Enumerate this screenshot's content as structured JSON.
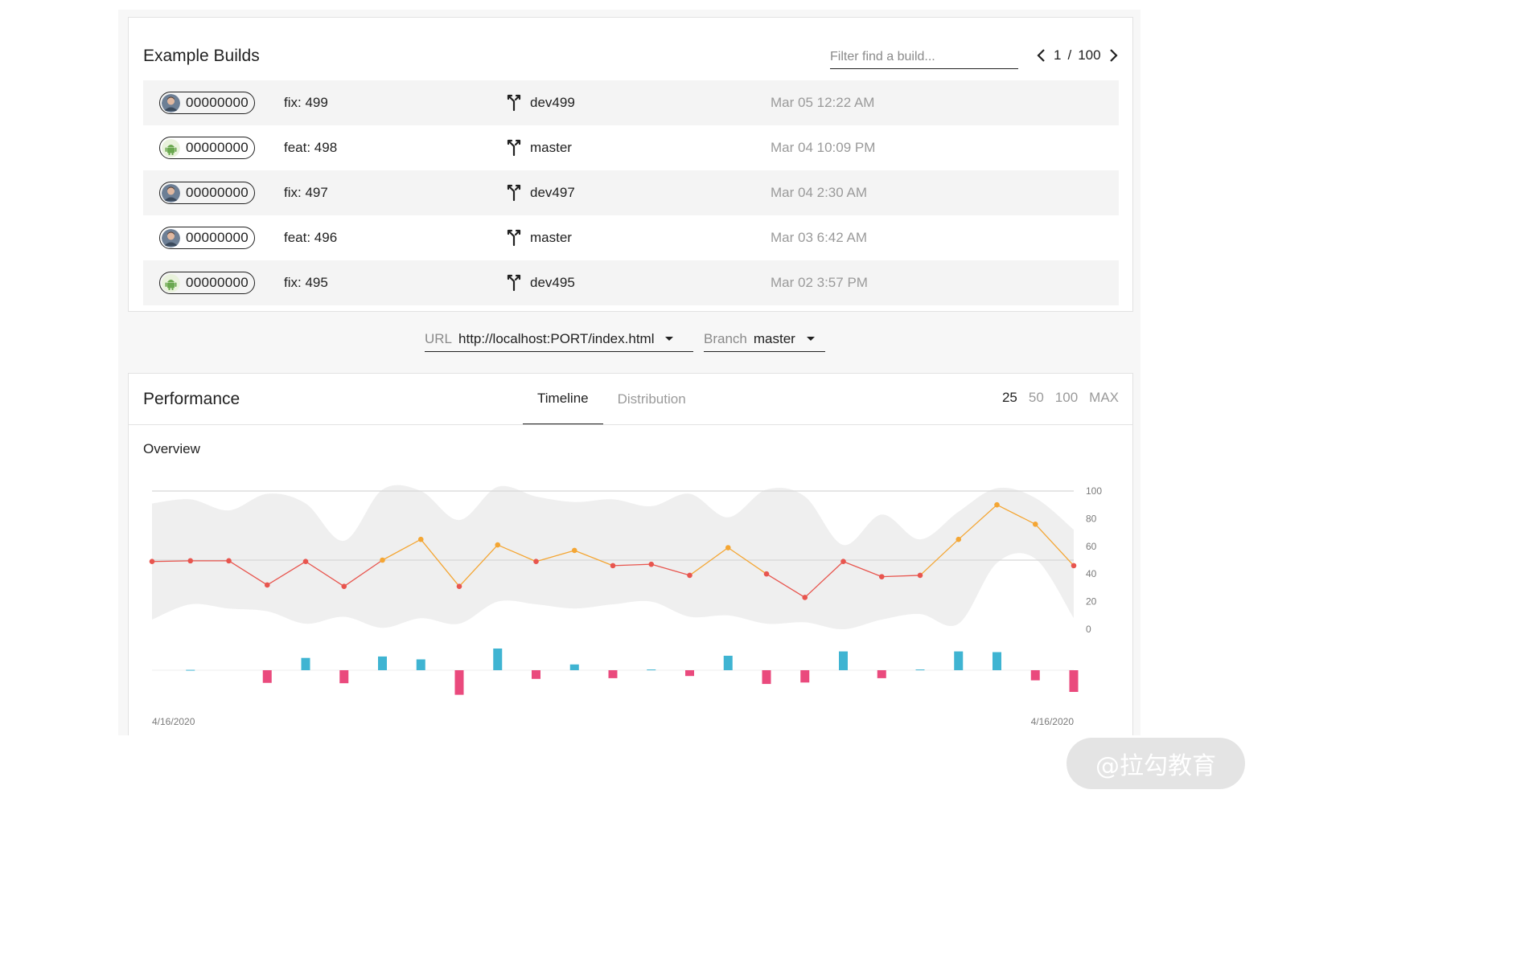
{
  "builds": {
    "title": "Example Builds",
    "filter_placeholder": "Filter find a build...",
    "pager": {
      "current": "1",
      "separator": "/",
      "total": "100"
    },
    "rows": [
      {
        "hash": "00000000",
        "avatar": "person-avatar",
        "message": "fix: 499",
        "branch": "dev499",
        "date": "Mar 05 12:22 AM"
      },
      {
        "hash": "00000000",
        "avatar": "android-avatar",
        "message": "feat: 498",
        "branch": "master",
        "date": "Mar 04 10:09 PM"
      },
      {
        "hash": "00000000",
        "avatar": "person-avatar",
        "message": "fix: 497",
        "branch": "dev497",
        "date": "Mar 04 2:30 AM"
      },
      {
        "hash": "00000000",
        "avatar": "person-avatar",
        "message": "feat: 496",
        "branch": "master",
        "date": "Mar 03 6:42 AM"
      },
      {
        "hash": "00000000",
        "avatar": "android-avatar",
        "message": "fix: 495",
        "branch": "dev495",
        "date": "Mar 02 3:57 PM"
      }
    ]
  },
  "selectors": {
    "url": {
      "label": "URL",
      "value": "http://localhost:PORT/index.html"
    },
    "branch": {
      "label": "Branch",
      "value": "master"
    }
  },
  "performance": {
    "title": "Performance",
    "tabs": [
      {
        "label": "Timeline",
        "active": true
      },
      {
        "label": "Distribution",
        "active": false
      }
    ],
    "ranges": [
      {
        "label": "25",
        "active": true
      },
      {
        "label": "50",
        "active": false
      },
      {
        "label": "100",
        "active": false
      },
      {
        "label": "MAX",
        "active": false
      }
    ],
    "overview_label": "Overview"
  },
  "chart_data": {
    "type": "line",
    "ylim": [
      0,
      100
    ],
    "y_ticks": [
      "100",
      "80",
      "60",
      "40",
      "20",
      "0"
    ],
    "x_labels": {
      "start": "4/16/2020",
      "end": "4/16/2020"
    },
    "series": [
      {
        "values": [
          49,
          49.5,
          49.5,
          32,
          49,
          31,
          50,
          65,
          31,
          61,
          49,
          57,
          46,
          47,
          39,
          59,
          40,
          23,
          49,
          38,
          39,
          65,
          90,
          76,
          46
        ]
      }
    ],
    "band": {
      "upper": [
        91,
        94,
        86,
        98,
        91,
        64,
        101,
        100,
        79,
        103,
        96,
        92,
        94,
        89,
        98,
        81,
        101,
        96,
        61,
        83,
        65,
        85,
        102,
        95,
        72
      ],
      "lower": [
        7,
        18,
        15,
        13,
        4,
        9,
        1,
        8,
        4,
        20,
        18,
        15,
        18,
        20,
        9,
        10,
        4,
        5,
        0,
        7,
        11,
        4,
        48,
        51,
        8
      ]
    },
    "deltas": [
      0,
      0.5,
      0,
      -17.5,
      17,
      -18,
      19,
      15,
      -34,
      30,
      -12,
      8,
      -11,
      1,
      -8,
      20,
      -19,
      -17,
      26,
      -11,
      1,
      26,
      25,
      -14,
      -30
    ],
    "colors": {
      "line_low": "#e8554e",
      "line_high": "#f4a634",
      "band": "#efefef",
      "gridline": "#d7d7d7",
      "bar_positive": "#3fb4d2",
      "bar_negative": "#ea4a7d"
    }
  },
  "watermark": "@拉勾教育"
}
